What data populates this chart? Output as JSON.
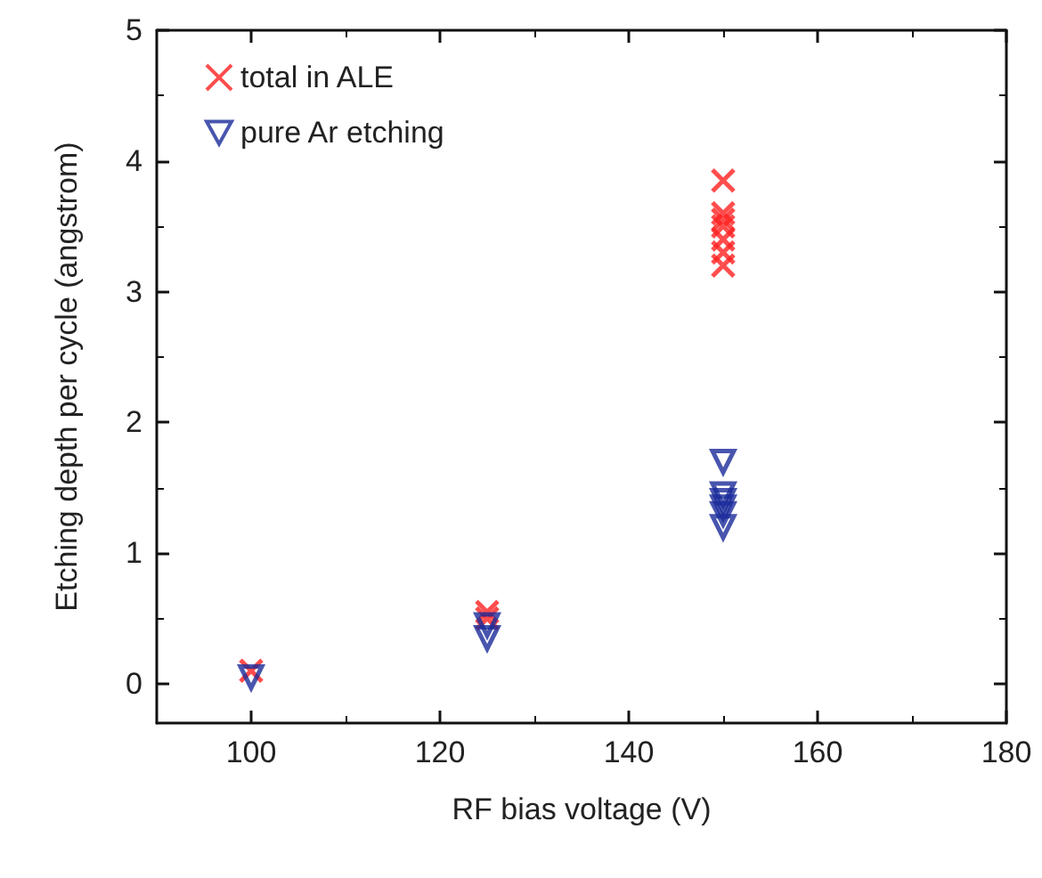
{
  "chart_data": {
    "type": "scatter",
    "xlabel": "RF bias voltage (V)",
    "ylabel": "Etching depth per cycle (angstrom)",
    "xlim": [
      90,
      180
    ],
    "xticks": [
      100,
      120,
      140,
      160,
      180
    ],
    "ylim": [
      -0.3,
      5
    ],
    "yticks": [
      0,
      1,
      2,
      3,
      4,
      5
    ],
    "grid": false,
    "legend": "top left",
    "series": [
      {
        "name": "total in ALE",
        "color": "#ff2020",
        "marker": "cross",
        "x": [
          100,
          125,
          125,
          150,
          150,
          150,
          150,
          150,
          150,
          150
        ],
        "values": [
          0.1,
          0.55,
          0.5,
          3.85,
          3.6,
          3.55,
          3.5,
          3.4,
          3.3,
          3.2
        ]
      },
      {
        "name": "pure Ar etching",
        "color": "#1a2a9a",
        "marker": "triangle-down",
        "x": [
          100,
          125,
          125,
          150,
          150,
          150,
          150,
          150,
          150
        ],
        "values": [
          0.05,
          0.45,
          0.35,
          1.7,
          1.45,
          1.4,
          1.35,
          1.3,
          1.2
        ]
      }
    ]
  }
}
